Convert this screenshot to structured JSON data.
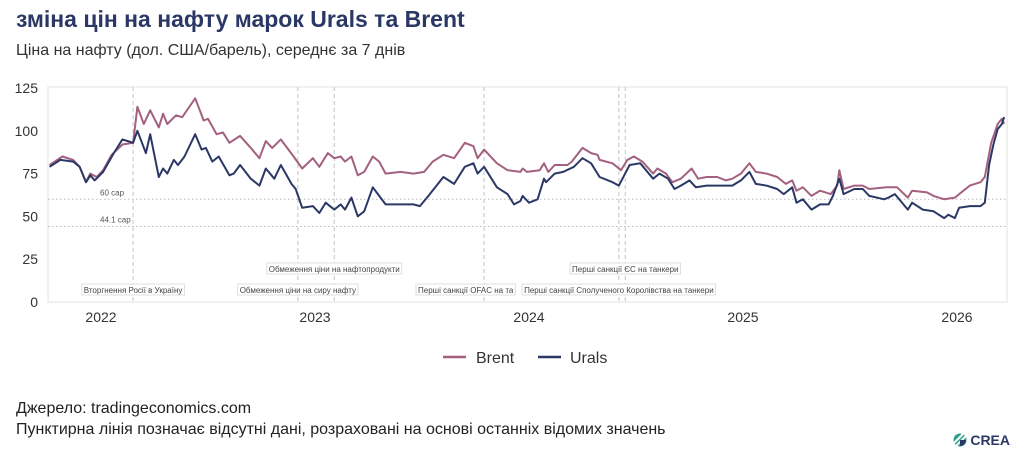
{
  "header": {
    "title": "зміна цін на нафту марок Urals та Brent",
    "subtitle": "Ціна на нафту (дол. США/барель), середнє за 7 днів"
  },
  "footer": {
    "source": "Джерело: tradingeconomics.com",
    "note": "Пунктирна лінія позначає відсутні дані, розраховані на основі останніх відомих значень",
    "logo": "CREA"
  },
  "colors": {
    "brent": "#a3607f",
    "urals": "#2b3866",
    "title": "#2b3866"
  },
  "chart_data": {
    "type": "line",
    "title": "зміна цін на нафту марок Urals та Brent",
    "ylabel": "Ціна на нафту (дол. США/барель)",
    "ylim": [
      0,
      125
    ],
    "xlim": [
      2021.75,
      2026.24
    ],
    "yticks": [
      "0",
      "25",
      "50",
      "75",
      "100",
      "125"
    ],
    "xticks": [
      {
        "x": 2022,
        "label": "2022"
      },
      {
        "x": 2023,
        "label": "2023"
      },
      {
        "x": 2024,
        "label": "2024"
      },
      {
        "x": 2025,
        "label": "2025"
      },
      {
        "x": 2026,
        "label": "2026"
      }
    ],
    "grid": false,
    "legend_position": "bottom-center",
    "caps": [
      {
        "value": 60,
        "label": "60 cap"
      },
      {
        "value": 44.1,
        "label": "44.1 cap"
      }
    ],
    "events": [
      {
        "x": 2022.15,
        "label": "Вторгнення Росії в Україну",
        "row": 2
      },
      {
        "x": 2022.92,
        "label": "Обмеження ціни на сиру нафту",
        "row": 2
      },
      {
        "x": 2023.09,
        "label": "Обмеження ціни на нафтопродукти",
        "row": 1
      },
      {
        "x": 2023.79,
        "label": "Перші санкції OFAC на та",
        "row": 2
      },
      {
        "x": 2024.42,
        "label": "Перші санкції Сполученого Королівства на танкери",
        "row": 2
      },
      {
        "x": 2024.45,
        "label": "Перші санкції ЄС на танкери",
        "row": 1
      }
    ],
    "series": [
      {
        "name": "Brent",
        "points": [
          [
            2021.76,
            80
          ],
          [
            2021.82,
            85
          ],
          [
            2021.87,
            83
          ],
          [
            2021.9,
            79
          ],
          [
            2021.93,
            70
          ],
          [
            2021.95,
            75
          ],
          [
            2021.98,
            73
          ],
          [
            2022.01,
            77
          ],
          [
            2022.05,
            86
          ],
          [
            2022.1,
            92
          ],
          [
            2022.15,
            93
          ],
          [
            2022.17,
            114
          ],
          [
            2022.2,
            104
          ],
          [
            2022.23,
            112
          ],
          [
            2022.27,
            102
          ],
          [
            2022.29,
            110
          ],
          [
            2022.31,
            104
          ],
          [
            2022.35,
            109
          ],
          [
            2022.38,
            108
          ],
          [
            2022.44,
            119
          ],
          [
            2022.48,
            106
          ],
          [
            2022.5,
            107
          ],
          [
            2022.54,
            98
          ],
          [
            2022.57,
            99
          ],
          [
            2022.6,
            93
          ],
          [
            2022.65,
            97
          ],
          [
            2022.7,
            90
          ],
          [
            2022.74,
            84
          ],
          [
            2022.77,
            94
          ],
          [
            2022.8,
            90
          ],
          [
            2022.84,
            95
          ],
          [
            2022.9,
            85
          ],
          [
            2022.94,
            78
          ],
          [
            2022.99,
            84
          ],
          [
            2023.02,
            79
          ],
          [
            2023.06,
            87
          ],
          [
            2023.09,
            84
          ],
          [
            2023.12,
            85
          ],
          [
            2023.14,
            82
          ],
          [
            2023.17,
            85
          ],
          [
            2023.2,
            74
          ],
          [
            2023.23,
            76
          ],
          [
            2023.27,
            85
          ],
          [
            2023.3,
            82
          ],
          [
            2023.33,
            75
          ],
          [
            2023.4,
            76
          ],
          [
            2023.46,
            75
          ],
          [
            2023.51,
            76
          ],
          [
            2023.55,
            82
          ],
          [
            2023.6,
            86
          ],
          [
            2023.65,
            84
          ],
          [
            2023.7,
            93
          ],
          [
            2023.74,
            91
          ],
          [
            2023.76,
            84
          ],
          [
            2023.79,
            89
          ],
          [
            2023.85,
            81
          ],
          [
            2023.9,
            77
          ],
          [
            2023.96,
            76
          ],
          [
            2023.97,
            78
          ],
          [
            2023.99,
            76
          ],
          [
            2024.05,
            77
          ],
          [
            2024.07,
            81
          ],
          [
            2024.09,
            76
          ],
          [
            2024.12,
            80
          ],
          [
            2024.18,
            80
          ],
          [
            2024.2,
            82
          ],
          [
            2024.25,
            90
          ],
          [
            2024.29,
            87
          ],
          [
            2024.32,
            86
          ],
          [
            2024.33,
            83
          ],
          [
            2024.39,
            81
          ],
          [
            2024.43,
            77
          ],
          [
            2024.46,
            83
          ],
          [
            2024.49,
            85
          ],
          [
            2024.53,
            82
          ],
          [
            2024.58,
            75
          ],
          [
            2024.6,
            78
          ],
          [
            2024.64,
            75
          ],
          [
            2024.67,
            70
          ],
          [
            2024.71,
            72
          ],
          [
            2024.76,
            78
          ],
          [
            2024.79,
            72
          ],
          [
            2024.83,
            73
          ],
          [
            2024.88,
            73
          ],
          [
            2024.92,
            71
          ],
          [
            2024.95,
            72
          ],
          [
            2024.99,
            75
          ],
          [
            2025.03,
            81
          ],
          [
            2025.06,
            76
          ],
          [
            2025.11,
            75
          ],
          [
            2025.16,
            73
          ],
          [
            2025.2,
            69
          ],
          [
            2025.23,
            71
          ],
          [
            2025.25,
            65
          ],
          [
            2025.28,
            67
          ],
          [
            2025.32,
            62
          ],
          [
            2025.36,
            65
          ],
          [
            2025.41,
            63
          ],
          [
            2025.44,
            68
          ],
          [
            2025.45,
            77
          ],
          [
            2025.47,
            66
          ],
          [
            2025.52,
            68
          ],
          [
            2025.56,
            68
          ],
          [
            2025.59,
            66
          ],
          [
            2025.67,
            67
          ],
          [
            2025.72,
            67
          ],
          [
            2025.77,
            61
          ],
          [
            2025.79,
            65
          ],
          [
            2025.86,
            64
          ],
          [
            2025.89,
            62
          ],
          [
            2025.94,
            60
          ],
          [
            2025.99,
            61
          ],
          [
            2026.03,
            65
          ],
          [
            2026.06,
            68
          ],
          [
            2026.11,
            70
          ],
          [
            2026.13,
            73
          ],
          [
            2026.16,
            93
          ],
          [
            2026.19,
            104
          ],
          [
            2026.21,
            107
          ],
          [
            2026.22,
            104
          ]
        ]
      },
      {
        "name": "Urals",
        "points": [
          [
            2021.76,
            79
          ],
          [
            2021.81,
            83
          ],
          [
            2021.87,
            82
          ],
          [
            2021.9,
            79
          ],
          [
            2021.93,
            70
          ],
          [
            2021.95,
            74
          ],
          [
            2021.97,
            71
          ],
          [
            2022.01,
            76
          ],
          [
            2022.06,
            87
          ],
          [
            2022.1,
            95
          ],
          [
            2022.15,
            93
          ],
          [
            2022.17,
            100
          ],
          [
            2022.21,
            87
          ],
          [
            2022.23,
            98
          ],
          [
            2022.27,
            73
          ],
          [
            2022.29,
            78
          ],
          [
            2022.31,
            75
          ],
          [
            2022.34,
            83
          ],
          [
            2022.36,
            80
          ],
          [
            2022.39,
            85
          ],
          [
            2022.44,
            98
          ],
          [
            2022.47,
            89
          ],
          [
            2022.49,
            90
          ],
          [
            2022.52,
            82
          ],
          [
            2022.55,
            85
          ],
          [
            2022.6,
            74
          ],
          [
            2022.62,
            75
          ],
          [
            2022.65,
            80
          ],
          [
            2022.7,
            72
          ],
          [
            2022.74,
            68
          ],
          [
            2022.77,
            78
          ],
          [
            2022.81,
            72
          ],
          [
            2022.84,
            80
          ],
          [
            2022.89,
            69
          ],
          [
            2022.91,
            66
          ],
          [
            2022.94,
            55
          ],
          [
            2022.99,
            56
          ],
          [
            2023.02,
            52
          ],
          [
            2023.05,
            58
          ],
          [
            2023.09,
            54
          ],
          [
            2023.12,
            57
          ],
          [
            2023.14,
            54
          ],
          [
            2023.17,
            61
          ],
          [
            2023.2,
            50
          ],
          [
            2023.23,
            53
          ],
          [
            2023.27,
            67
          ],
          [
            2023.3,
            62
          ],
          [
            2023.33,
            57
          ],
          [
            2023.4,
            57
          ],
          [
            2023.46,
            57
          ],
          [
            2023.49,
            56
          ],
          [
            2023.53,
            62
          ],
          [
            2023.6,
            73
          ],
          [
            2023.65,
            69
          ],
          [
            2023.7,
            79
          ],
          [
            2023.74,
            81
          ],
          [
            2023.76,
            75
          ],
          [
            2023.79,
            79
          ],
          [
            2023.85,
            67
          ],
          [
            2023.9,
            63
          ],
          [
            2023.93,
            57
          ],
          [
            2023.96,
            59
          ],
          [
            2023.97,
            62
          ],
          [
            2024.0,
            58
          ],
          [
            2024.04,
            60
          ],
          [
            2024.07,
            72
          ],
          [
            2024.08,
            70
          ],
          [
            2024.12,
            75
          ],
          [
            2024.16,
            76
          ],
          [
            2024.21,
            79
          ],
          [
            2024.25,
            84
          ],
          [
            2024.29,
            81
          ],
          [
            2024.33,
            73
          ],
          [
            2024.39,
            70
          ],
          [
            2024.42,
            68
          ],
          [
            2024.47,
            80
          ],
          [
            2024.52,
            81
          ],
          [
            2024.58,
            72
          ],
          [
            2024.61,
            75
          ],
          [
            2024.65,
            72
          ],
          [
            2024.68,
            66
          ],
          [
            2024.71,
            68
          ],
          [
            2024.75,
            71
          ],
          [
            2024.78,
            67
          ],
          [
            2024.83,
            68
          ],
          [
            2024.88,
            68
          ],
          [
            2024.95,
            68
          ],
          [
            2024.99,
            71
          ],
          [
            2025.03,
            76
          ],
          [
            2025.06,
            69
          ],
          [
            2025.11,
            68
          ],
          [
            2025.16,
            66
          ],
          [
            2025.19,
            63
          ],
          [
            2025.23,
            67
          ],
          [
            2025.25,
            58
          ],
          [
            2025.28,
            60
          ],
          [
            2025.32,
            54
          ],
          [
            2025.36,
            57
          ],
          [
            2025.4,
            57
          ],
          [
            2025.42,
            62
          ],
          [
            2025.45,
            72
          ],
          [
            2025.47,
            63
          ],
          [
            2025.52,
            66
          ],
          [
            2025.56,
            66
          ],
          [
            2025.59,
            62
          ],
          [
            2025.66,
            60
          ],
          [
            2025.68,
            61
          ],
          [
            2025.71,
            63
          ],
          [
            2025.77,
            54
          ],
          [
            2025.79,
            58
          ],
          [
            2025.84,
            54
          ],
          [
            2025.89,
            53
          ],
          [
            2025.94,
            49
          ],
          [
            2025.96,
            51
          ],
          [
            2025.99,
            49
          ],
          [
            2026.01,
            55
          ],
          [
            2026.06,
            56
          ],
          [
            2026.11,
            56
          ],
          [
            2026.13,
            58
          ],
          [
            2026.15,
            80
          ],
          [
            2026.17,
            92
          ],
          [
            2026.19,
            101
          ],
          [
            2026.21,
            104
          ],
          [
            2026.22,
            108
          ]
        ]
      }
    ]
  }
}
